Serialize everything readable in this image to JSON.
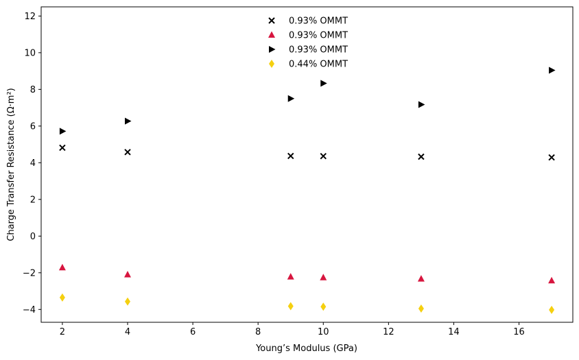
{
  "chart_data": {
    "type": "scatter",
    "title": "",
    "xlabel": "Young’s Modulus (GPa)",
    "ylabel": "Charge Transfer Resistance (Ω·m²)",
    "xlim": [
      1.35,
      17.65
    ],
    "ylim": [
      -4.7,
      12.5
    ],
    "xticks": [
      2,
      4,
      6,
      8,
      10,
      12,
      14,
      16
    ],
    "yticks": [
      -4,
      -2,
      0,
      2,
      4,
      6,
      8,
      10,
      12
    ],
    "grid": false,
    "legend_position": "top-center",
    "series": [
      {
        "name": "0.93% OMMT",
        "marker": "x",
        "color": "#000000",
        "points": [
          [
            2,
            4.82
          ],
          [
            4,
            4.58
          ],
          [
            9,
            4.37
          ],
          [
            10,
            4.36
          ],
          [
            13,
            4.33
          ],
          [
            17,
            4.29
          ]
        ]
      },
      {
        "name": "0.93% OMMT",
        "marker": "triangle-up",
        "color": "#d7163f",
        "points": [
          [
            2,
            -1.72
          ],
          [
            4,
            -2.1
          ],
          [
            9,
            -2.22
          ],
          [
            10,
            -2.26
          ],
          [
            13,
            -2.33
          ],
          [
            17,
            -2.43
          ]
        ]
      },
      {
        "name": "0.93% OMMT",
        "marker": "triangle-right",
        "color": "#000000",
        "points": [
          [
            2,
            5.72
          ],
          [
            4,
            6.27
          ],
          [
            9,
            7.5
          ],
          [
            10,
            8.33
          ],
          [
            13,
            7.17
          ],
          [
            17,
            9.04
          ]
        ]
      },
      {
        "name": "0.44% OMMT",
        "marker": "thin-diamond",
        "color": "#f5d010",
        "points": [
          [
            2,
            -3.35
          ],
          [
            4,
            -3.57
          ],
          [
            9,
            -3.82
          ],
          [
            10,
            -3.85
          ],
          [
            13,
            -3.95
          ],
          [
            17,
            -4.02
          ]
        ]
      }
    ]
  }
}
